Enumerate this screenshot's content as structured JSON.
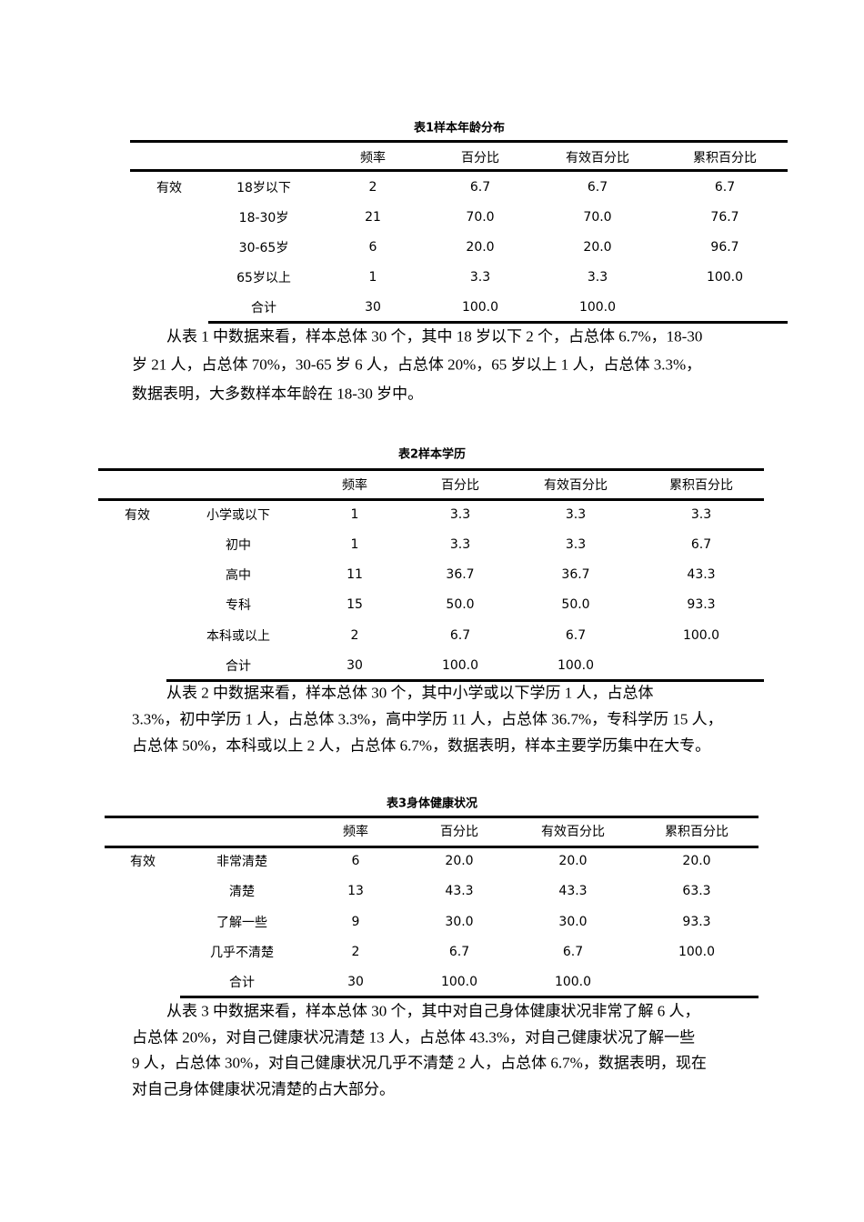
{
  "tables": [
    {
      "title": "表1样本年龄分布",
      "headers": [
        "",
        "",
        "频率",
        "百分比",
        "有效百分比",
        "累积百分比"
      ],
      "rows": [
        [
          "有效",
          "18岁以下",
          "2",
          "6.7",
          "6.7",
          "6.7"
        ],
        [
          "",
          "18-30岁",
          "21",
          "70.0",
          "70.0",
          "76.7"
        ],
        [
          "",
          "30-65岁",
          "6",
          "20.0",
          "20.0",
          "96.7"
        ],
        [
          "",
          "65岁以上",
          "1",
          "3.3",
          "3.3",
          "100.0"
        ],
        [
          "",
          "合计",
          "30",
          "100.0",
          "100.0",
          ""
        ]
      ]
    },
    {
      "title": "表2样本学历",
      "headers": [
        "",
        "",
        "频率",
        "百分比",
        "有效百分比",
        "累积百分比"
      ],
      "rows": [
        [
          "有效",
          "小学或以下",
          "1",
          "3.3",
          "3.3",
          "3.3"
        ],
        [
          "",
          "初中",
          "1",
          "3.3",
          "3.3",
          "6.7"
        ],
        [
          "",
          "高中",
          "11",
          "36.7",
          "36.7",
          "43.3"
        ],
        [
          "",
          "专科",
          "15",
          "50.0",
          "50.0",
          "93.3"
        ],
        [
          "",
          "本科或以上",
          "2",
          "6.7",
          "6.7",
          "100.0"
        ],
        [
          "",
          "合计",
          "30",
          "100.0",
          "100.0",
          ""
        ]
      ]
    },
    {
      "title": "表3身体健康状况",
      "headers": [
        "",
        "",
        "频率",
        "百分比",
        "有效百分比",
        "累积百分比"
      ],
      "rows": [
        [
          "有效",
          "非常清楚",
          "6",
          "20.0",
          "20.0",
          "20.0"
        ],
        [
          "",
          "清楚",
          "13",
          "43.3",
          "43.3",
          "63.3"
        ],
        [
          "",
          "了解一些",
          "9",
          "30.0",
          "30.0",
          "93.3"
        ],
        [
          "",
          "几乎不清楚",
          "2",
          "6.7",
          "6.7",
          "100.0"
        ],
        [
          "",
          "合计",
          "30",
          "100.0",
          "100.0",
          ""
        ]
      ]
    }
  ],
  "paragraphs": [
    [
      "从表 1 中数据来看，样本总体 30 个，其中 18 岁以下 2 个，占总体 6.7%，18-30",
      "岁 21 人，占总体 70%，30-65 岁 6 人，占总体 20%，65 岁以上 1 人，占总体 3.3%，",
      "数据表明，大多数样本年龄在 18-30 岁中。"
    ],
    [
      "从表 2 中数据来看，样本总体 30 个，其中小学或以下学历 1 人，占总体",
      "3.3%，初中学历 1 人，占总体 3.3%，高中学历 11 人，占总体 36.7%，专科学历 15 人，",
      "占总体 50%，本科或以上 2 人，占总体 6.7%，数据表明，样本主要学历集中在大专。"
    ],
    [
      "从表 3 中数据来看，样本总体 30 个，其中对自己身体健康状况非常了解 6 人，",
      "占总体 20%，对自己健康状况清楚 13 人，占总体 43.3%，对自己健康状况了解一些",
      "9 人，占总体 30%，对自己健康状况几乎不清楚 2 人，占总体 6.7%，数据表明，现在",
      "对自己身体健康状况清楚的占大部分。"
    ]
  ]
}
